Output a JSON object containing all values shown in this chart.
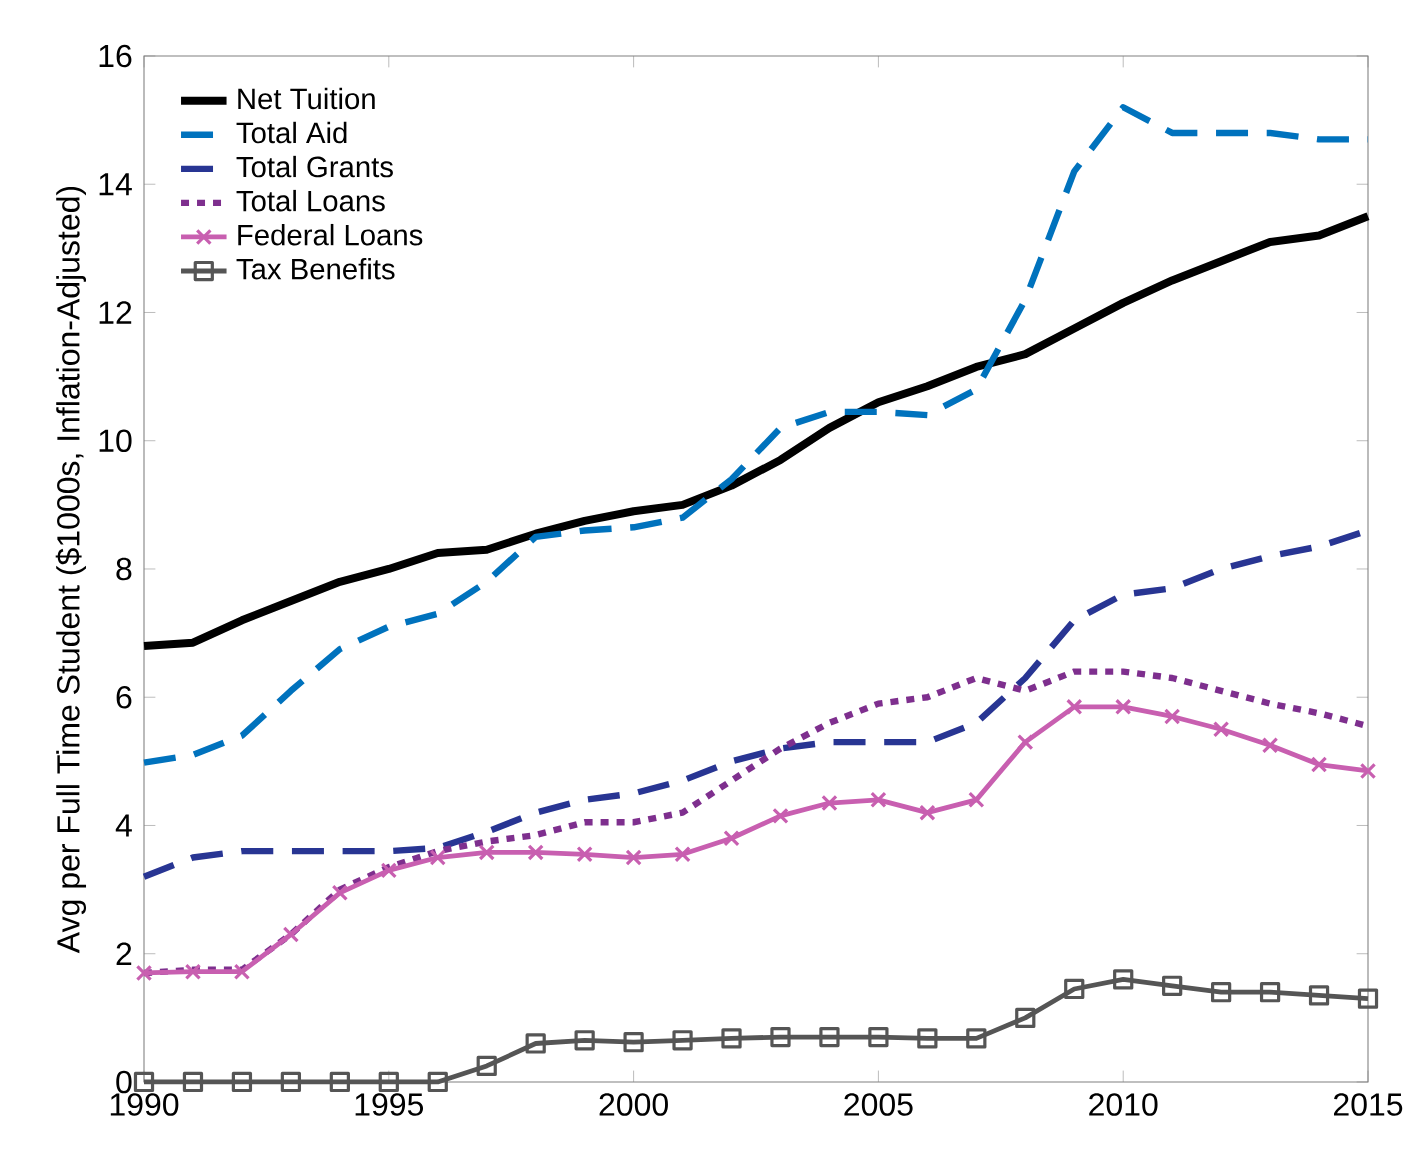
{
  "chart_data": {
    "type": "line",
    "ylabel": "Avg per Full Time Student ($1000s, Inflation-Adjusted)",
    "x": [
      1990,
      1991,
      1992,
      1993,
      1994,
      1995,
      1996,
      1997,
      1998,
      1999,
      2000,
      2001,
      2002,
      2003,
      2004,
      2005,
      2006,
      2007,
      2008,
      2009,
      2010,
      2011,
      2012,
      2013,
      2014,
      2015
    ],
    "xlim": [
      1990,
      2015
    ],
    "xticks": [
      1990,
      1995,
      2000,
      2005,
      2010,
      2015
    ],
    "ylim": [
      0,
      16
    ],
    "yticks": [
      0,
      2,
      4,
      6,
      8,
      10,
      12,
      14,
      16
    ],
    "grid": false,
    "legend": "top left",
    "series": [
      {
        "name": "Net Tuition",
        "color": "#000000",
        "line_style": "solid",
        "marker": "none",
        "values": [
          6.8,
          6.85,
          7.2,
          7.5,
          7.8,
          8.0,
          8.25,
          8.3,
          8.55,
          8.75,
          8.9,
          9.0,
          9.3,
          9.7,
          10.2,
          10.6,
          10.85,
          11.15,
          11.35,
          11.75,
          12.15,
          12.5,
          12.8,
          13.1,
          13.2,
          13.5
        ]
      },
      {
        "name": "Total Aid",
        "color": "#0072bd",
        "line_style": "dashed",
        "marker": "none",
        "values": [
          4.98,
          5.1,
          5.4,
          6.1,
          6.75,
          7.1,
          7.3,
          7.8,
          8.5,
          8.6,
          8.65,
          8.8,
          9.4,
          10.2,
          10.45,
          10.45,
          10.4,
          10.8,
          12.2,
          14.2,
          15.2,
          14.8,
          14.8,
          14.8,
          14.7,
          14.7
        ]
      },
      {
        "name": "Total Grants",
        "color": "#283593",
        "line_style": "dashed",
        "marker": "none",
        "values": [
          3.2,
          3.5,
          3.6,
          3.6,
          3.6,
          3.6,
          3.65,
          3.9,
          4.2,
          4.4,
          4.5,
          4.7,
          5.0,
          5.2,
          5.3,
          5.3,
          5.3,
          5.6,
          6.3,
          7.2,
          7.6,
          7.7,
          8.0,
          8.2,
          8.35,
          8.6
        ]
      },
      {
        "name": "Total Loans",
        "color": "#7e2f8e",
        "line_style": "dotted",
        "marker": "none",
        "values": [
          1.7,
          1.75,
          1.75,
          2.3,
          3.0,
          3.35,
          3.6,
          3.75,
          3.85,
          4.05,
          4.05,
          4.2,
          4.7,
          5.2,
          5.6,
          5.9,
          6.0,
          6.3,
          6.1,
          6.4,
          6.4,
          6.3,
          6.1,
          5.9,
          5.75,
          5.55
        ]
      },
      {
        "name": "Federal Loans",
        "color": "#c85fb0",
        "line_style": "solid",
        "marker": "cross",
        "values": [
          1.7,
          1.72,
          1.72,
          2.3,
          2.95,
          3.3,
          3.5,
          3.58,
          3.58,
          3.55,
          3.5,
          3.55,
          3.8,
          4.15,
          4.35,
          4.4,
          4.2,
          4.4,
          5.3,
          5.85,
          5.85,
          5.7,
          5.5,
          5.25,
          4.95,
          4.85
        ]
      },
      {
        "name": "Tax Benefits",
        "color": "#555555",
        "line_style": "solid",
        "marker": "square",
        "values": [
          0,
          0,
          0,
          0,
          0,
          0,
          0,
          0.25,
          0.6,
          0.65,
          0.62,
          0.65,
          0.68,
          0.7,
          0.7,
          0.7,
          0.68,
          0.68,
          1.0,
          1.45,
          1.6,
          1.5,
          1.4,
          1.4,
          1.35,
          1.3
        ]
      }
    ]
  }
}
